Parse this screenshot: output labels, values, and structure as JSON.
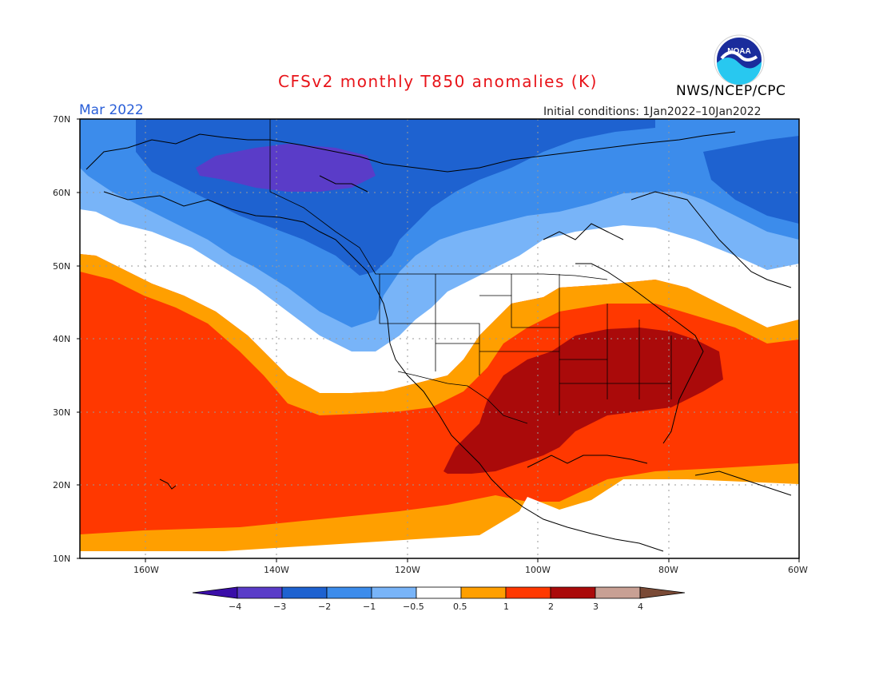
{
  "header": {
    "title": "CFSv2 monthly T850 anomalies (K)",
    "month": "Mar 2022",
    "initial_conditions": "Initial conditions: 1Jan2022–10Jan2022",
    "agency": "NWS/NCEP/CPC",
    "logo_text": "NOAA"
  },
  "map": {
    "lat_labels": [
      "70N",
      "60N",
      "50N",
      "40N",
      "30N",
      "20N",
      "10N"
    ],
    "lon_labels": [
      "160W",
      "140W",
      "120W",
      "100W",
      "80W",
      "60W"
    ],
    "lat_range": [
      10,
      70
    ],
    "lon_range": [
      -172,
      -60
    ]
  },
  "colorbar": {
    "labels": [
      "−4",
      "−3",
      "−2",
      "−1",
      "−0.5",
      "0.5",
      "1",
      "2",
      "3",
      "4"
    ],
    "colors": {
      "lt_m4": "#3a0ea8",
      "m4_m3": "#5a3cc8",
      "m3_m2": "#1e62d0",
      "m2_m1": "#3c8ceb",
      "m1_m05": "#78b4f8",
      "m05_05": "#ffffff",
      "p05_1": "#ff9f00",
      "p1_2": "#ff3800",
      "p2_3": "#aa0a0a",
      "p3_4": "#c8a094",
      "gt_4": "#7a4a36"
    }
  }
}
